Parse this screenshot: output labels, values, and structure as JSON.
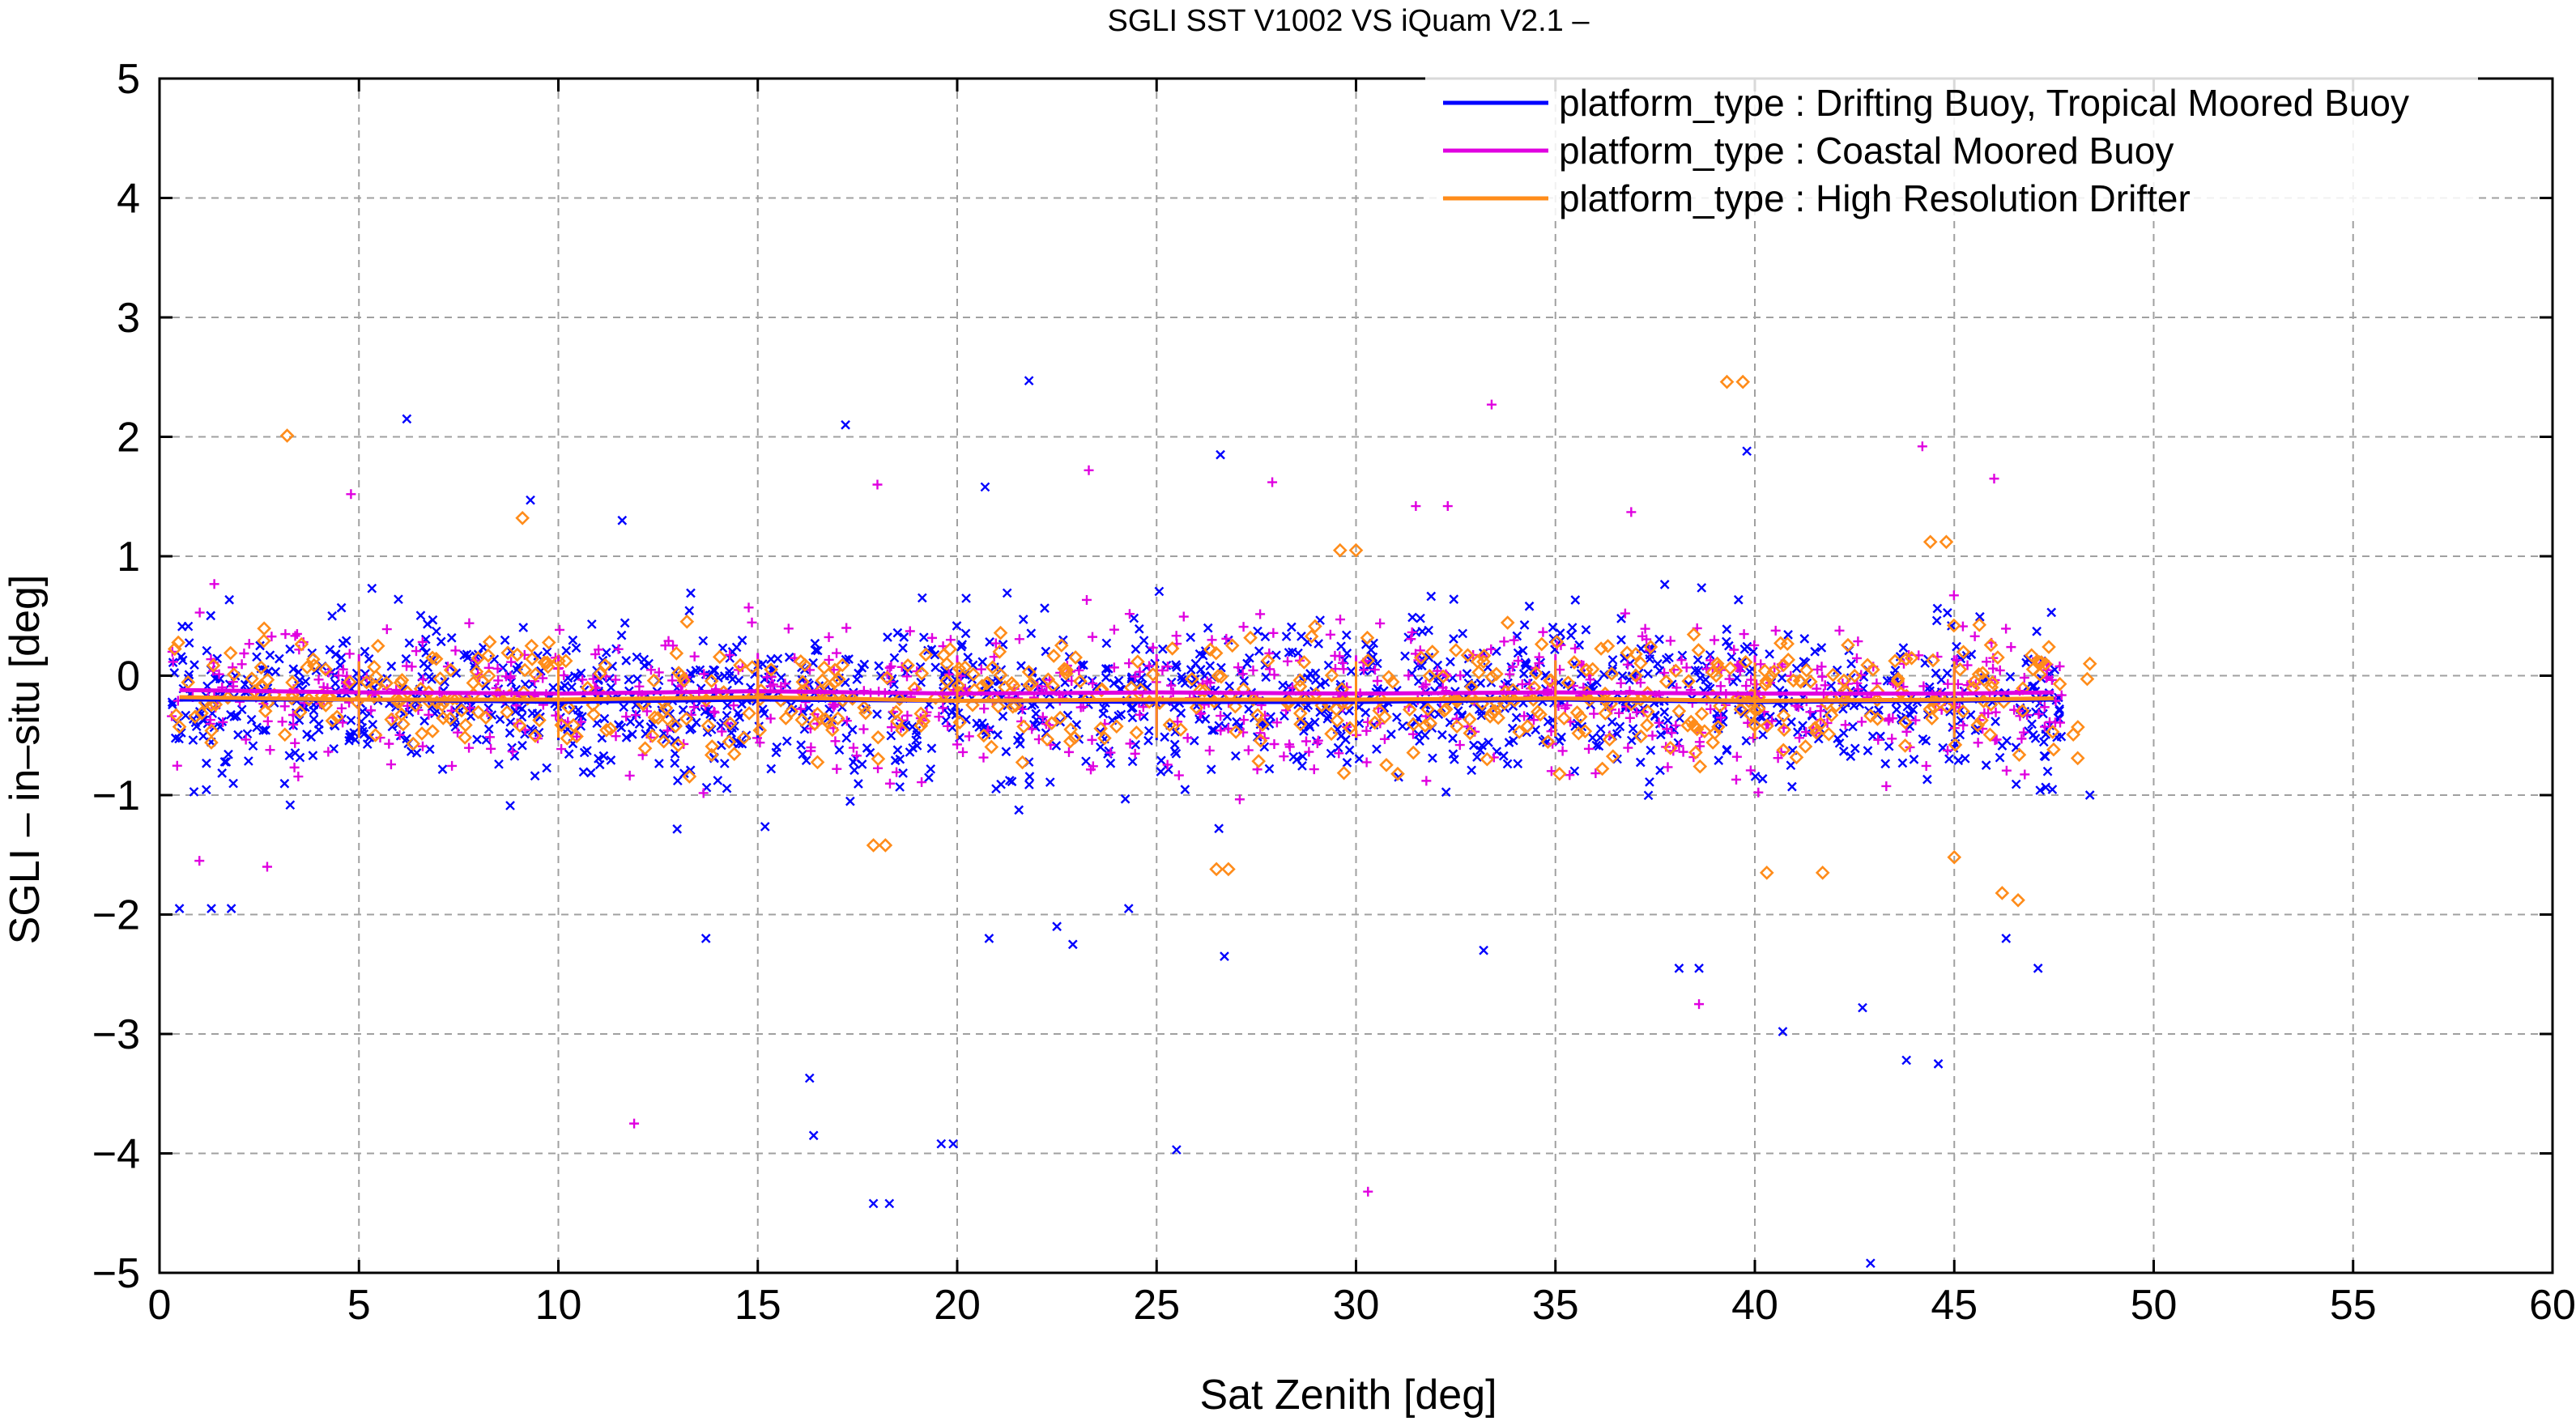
{
  "chart_data": {
    "type": "scatter",
    "title": "SGLI SST V1002 VS iQuam V2.1  –",
    "xlabel": "Sat Zenith [deg]",
    "ylabel": "SGLI – in–situ [deg]",
    "xlim": [
      0,
      60
    ],
    "ylim": [
      -5,
      5
    ],
    "x_ticks": [
      0,
      5,
      10,
      15,
      20,
      25,
      30,
      35,
      40,
      45,
      50,
      55,
      60
    ],
    "y_ticks": [
      5,
      4,
      3,
      2,
      1,
      0,
      -1,
      -2,
      -3,
      -4,
      -5
    ],
    "x_tick_labels": [
      "0",
      "5",
      "10",
      "15",
      "20",
      "25",
      "30",
      "35",
      "40",
      "45",
      "50",
      "55",
      "60"
    ],
    "y_tick_labels": [
      "5",
      "4",
      "3",
      "2",
      "1",
      "0",
      "−1",
      "−2",
      "−3",
      "−4",
      "−5"
    ],
    "grid": true,
    "legend_position": "top-right",
    "series": [
      {
        "name": "platform_type : Drifting Buoy, Tropical Moored Buoy",
        "color": "#0000ff",
        "marker": "x",
        "x_range": [
          0.3,
          47.7
        ],
        "center": -0.2,
        "spread": 0.33,
        "density": 1400,
        "mean_line": {
          "x": [
            0.5,
            5,
            10,
            15,
            20,
            25,
            30,
            35,
            40,
            45,
            47.5
          ],
          "y": [
            -0.2,
            -0.2,
            -0.22,
            -0.2,
            -0.21,
            -0.22,
            -0.22,
            -0.2,
            -0.22,
            -0.21,
            -0.2
          ]
        },
        "outliers": {
          "x": [
            21.8,
            17.2,
            6.2,
            39.8,
            20.7,
            26.6,
            9.3,
            11.6,
            16.3,
            16.4,
            17.9,
            18.3,
            19.6,
            19.9,
            25.5,
            40.7,
            42.7,
            42.9,
            43.8,
            44.6,
            13.7,
            20.8,
            22.5,
            22.9,
            24.3,
            26.7,
            38.1,
            38.6,
            0.5,
            1.3,
            1.8,
            47.1,
            46.3,
            48.4,
            33.2
          ],
          "y": [
            2.47,
            2.1,
            2.15,
            1.88,
            1.58,
            1.85,
            1.47,
            1.3,
            -3.37,
            -3.85,
            -4.42,
            -4.42,
            -3.92,
            -3.92,
            -3.97,
            -2.98,
            -2.78,
            -4.92,
            -3.22,
            -3.25,
            -2.2,
            -2.2,
            -2.1,
            -2.25,
            -1.95,
            -2.35,
            -2.45,
            -2.45,
            -1.95,
            -1.95,
            -1.95,
            -2.45,
            -2.2,
            -1.0,
            -2.3
          ]
        }
      },
      {
        "name": "platform_type : Coastal Moored Buoy",
        "color": "#e000e0",
        "marker": "+",
        "x_range": [
          0.3,
          47.7
        ],
        "center": -0.15,
        "spread": 0.3,
        "density": 700,
        "mean_line": {
          "x": [
            0.5,
            5,
            10,
            15,
            20,
            25,
            30,
            35,
            40,
            45,
            47.5
          ],
          "y": [
            -0.12,
            -0.14,
            -0.15,
            -0.13,
            -0.15,
            -0.14,
            -0.15,
            -0.14,
            -0.15,
            -0.15,
            -0.14
          ]
        },
        "outliers": {
          "x": [
            33.4,
            44.2,
            23.3,
            18.0,
            4.8,
            46.0,
            11.9,
            30.3,
            38.6,
            1.0,
            2.7,
            27.9,
            31.5,
            32.3,
            36.9
          ],
          "y": [
            2.27,
            1.92,
            1.72,
            1.6,
            1.52,
            1.65,
            -3.75,
            -4.32,
            -2.75,
            -1.55,
            -1.6,
            1.62,
            1.42,
            1.42,
            1.37
          ]
        }
      },
      {
        "name": "platform_type : High Resolution Drifter",
        "color": "#ff8c1a",
        "marker": "diamond",
        "x_range": [
          0.3,
          48.5
        ],
        "center": -0.17,
        "spread": 0.24,
        "density": 550,
        "mean_line": {
          "x": [
            0.5,
            5,
            10,
            15,
            20,
            25,
            30,
            35,
            40,
            45,
            47.5
          ],
          "y": [
            -0.18,
            -0.2,
            -0.2,
            -0.18,
            -0.21,
            -0.2,
            -0.2,
            -0.19,
            -0.21,
            -0.2,
            -0.19
          ]
        },
        "outliers": {
          "x": [
            3.2,
            39.3,
            39.7,
            9.1,
            44.4,
            44.8,
            26.5,
            26.8,
            17.9,
            18.2,
            40.3,
            41.7,
            45.0,
            46.2,
            46.6,
            29.6,
            30.0,
            48.4
          ],
          "y": [
            2.01,
            2.46,
            2.46,
            1.32,
            1.12,
            1.12,
            -1.62,
            -1.62,
            -1.42,
            -1.42,
            -1.65,
            -1.65,
            -1.52,
            -1.82,
            -1.88,
            1.05,
            1.05,
            0.1
          ]
        }
      }
    ]
  }
}
